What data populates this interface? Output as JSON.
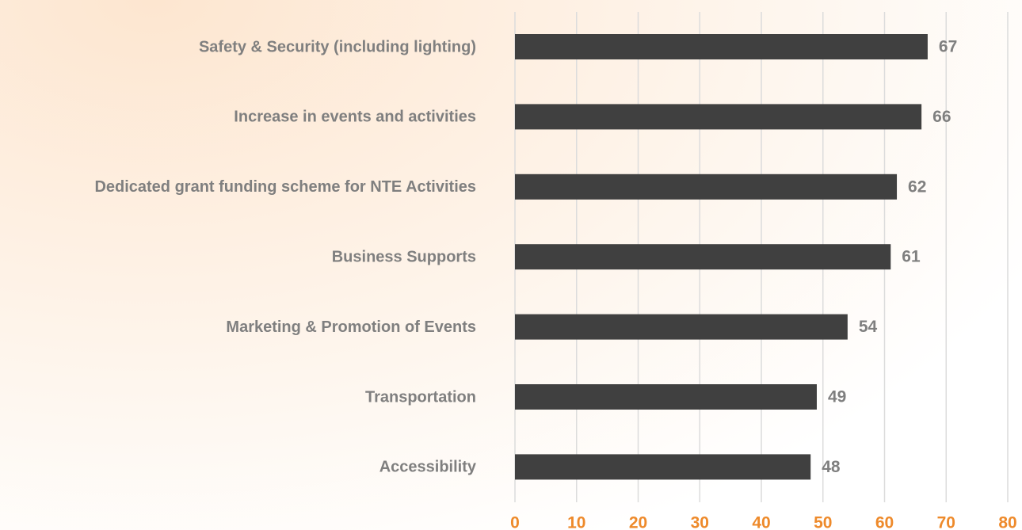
{
  "chart_data": {
    "type": "bar",
    "orientation": "horizontal",
    "categories": [
      "Safety & Security (including lighting)",
      "Increase in events and activities",
      "Dedicated grant funding scheme for NTE Activities",
      "Business Supports",
      "Marketing & Promotion of Events",
      "Transportation",
      "Accessibility"
    ],
    "values": [
      67,
      66,
      62,
      61,
      54,
      49,
      48
    ],
    "color": "#404040",
    "xlim": [
      0,
      80
    ],
    "xticks": [
      0,
      10,
      20,
      30,
      40,
      50,
      60,
      70,
      80
    ],
    "grid": true
  }
}
